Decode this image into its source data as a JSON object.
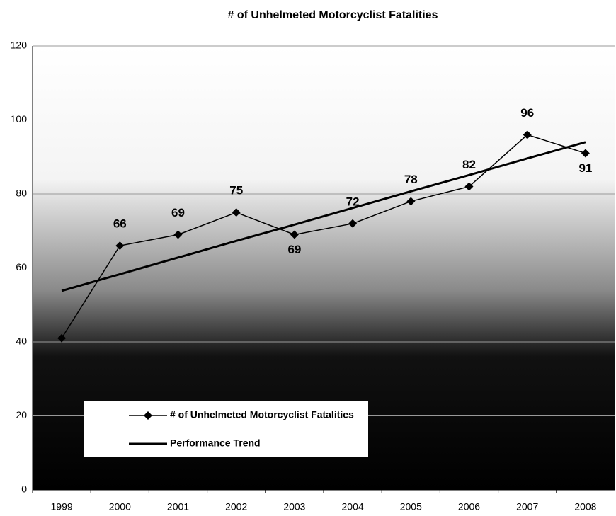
{
  "chart_data": {
    "type": "line",
    "title": "# of Unhelmeted Motorcyclist Fatalities",
    "categories": [
      "1999",
      "2000",
      "2001",
      "2002",
      "2003",
      "2004",
      "2005",
      "2006",
      "2007",
      "2008"
    ],
    "series": [
      {
        "name": "# of Unhelmeted Motorcyclist Fatalities",
        "color": "#000000",
        "marker": "diamond",
        "values": [
          41,
          66,
          69,
          75,
          69,
          72,
          78,
          82,
          96,
          91
        ],
        "value_labels": [
          null,
          "66",
          "69",
          "75",
          "69",
          "72",
          "78",
          "82",
          "96",
          "91"
        ]
      },
      {
        "name": "Performance Trend",
        "color": "#000000",
        "values": [
          53.8,
          58.3,
          62.8,
          67.3,
          71.7,
          76.2,
          80.7,
          85.1,
          89.6,
          94.0
        ]
      }
    ],
    "ylim": [
      0,
      120
    ],
    "yticks": [
      0,
      20,
      40,
      60,
      80,
      100,
      120
    ],
    "grid": true
  }
}
